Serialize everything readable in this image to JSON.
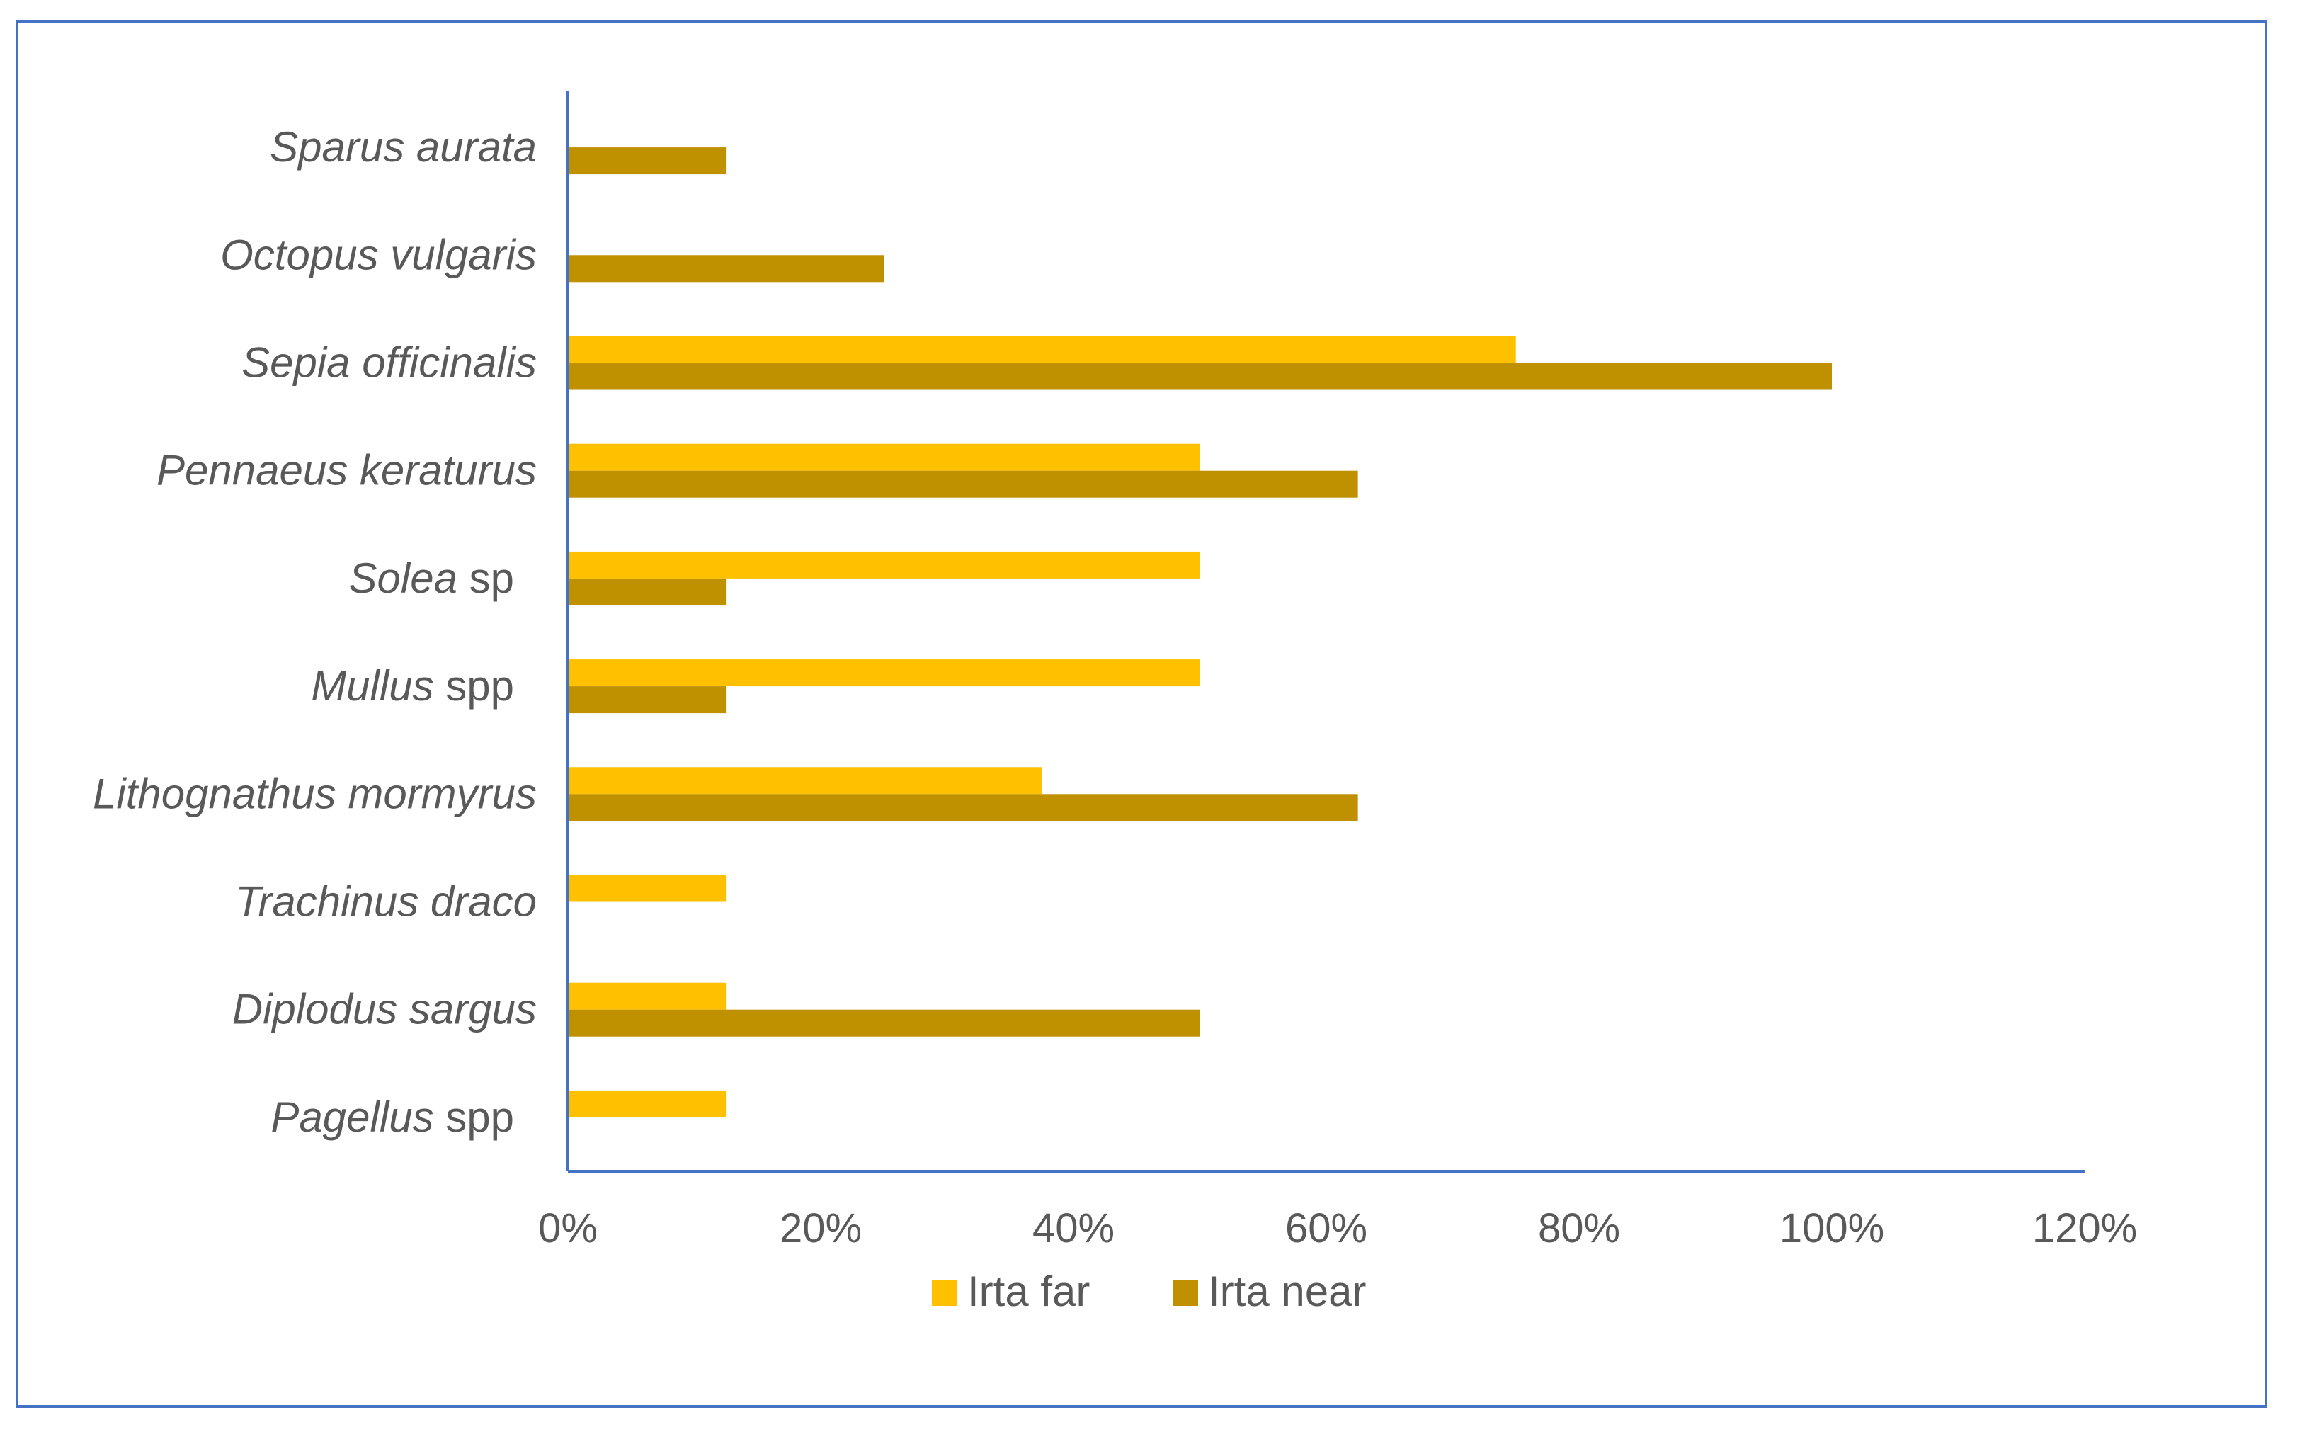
{
  "chart_data": {
    "type": "bar",
    "orientation": "horizontal",
    "categories": [
      {
        "name": "Sparus aurata",
        "italic": "Sparus aurata",
        "plain": ""
      },
      {
        "name": "Octopus vulgaris",
        "italic": "Octopus vulgaris",
        "plain": ""
      },
      {
        "name": "Sepia officinalis",
        "italic": "Sepia officinalis",
        "plain": ""
      },
      {
        "name": "Pennaeus keraturus",
        "italic": "Pennaeus keraturus",
        "plain": ""
      },
      {
        "name": "Solea sp",
        "italic": "Solea",
        "plain": " sp"
      },
      {
        "name": "Mullus spp",
        "italic": "Mullus",
        "plain": " spp"
      },
      {
        "name": "Lithognathus mormyrus",
        "italic": "Lithognathus mormyrus",
        "plain": ""
      },
      {
        "name": "Trachinus draco",
        "italic": "Trachinus draco",
        "plain": ""
      },
      {
        "name": "Diplodus sargus",
        "italic": "Diplodus sargus",
        "plain": ""
      },
      {
        "name": "Pagellus spp",
        "italic": "Pagellus",
        "plain": " spp"
      }
    ],
    "series": [
      {
        "name": "Irta far",
        "color": "#FFC000",
        "values": [
          0,
          0,
          75,
          50,
          50,
          50,
          37.5,
          12.5,
          12.5,
          12.5
        ]
      },
      {
        "name": "Irta near",
        "color": "#BF9000",
        "values": [
          12.5,
          25,
          100,
          62.5,
          12.5,
          12.5,
          62.5,
          0,
          50,
          0
        ]
      }
    ],
    "x_ticks": [
      "0%",
      "20%",
      "40%",
      "60%",
      "80%",
      "100%",
      "120%"
    ],
    "xlim": [
      0,
      120
    ],
    "xlabel": "",
    "ylabel": "",
    "title": "",
    "legend_position": "bottom",
    "grid": false,
    "colors": {
      "axis": "#4472C4",
      "frame": "#4472C4",
      "text": "#595959"
    }
  }
}
